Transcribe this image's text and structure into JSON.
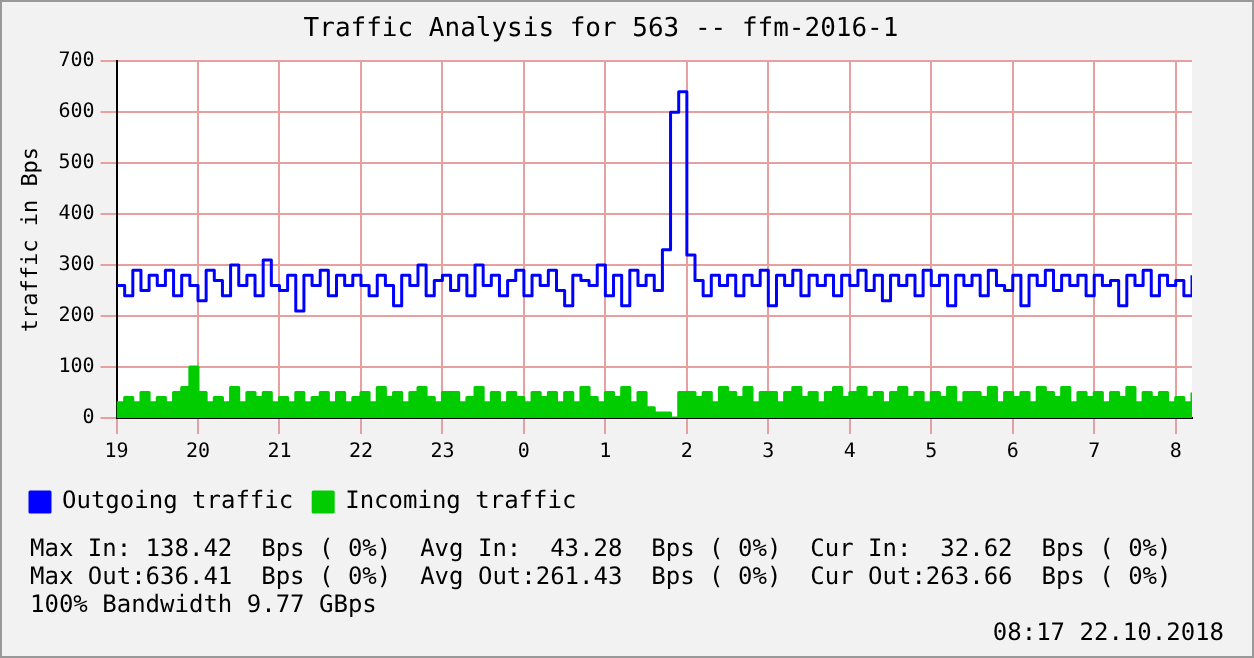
{
  "chart_data": {
    "type": "line",
    "title": "Traffic Analysis for 563 -- ffm-2016-1",
    "ylabel": "traffic in Bps",
    "x": [
      "2018-10-21T19:00",
      "2018-10-21T19:06",
      "2018-10-21T19:12",
      "2018-10-21T19:18",
      "2018-10-21T19:24",
      "2018-10-21T19:30",
      "2018-10-21T19:36",
      "2018-10-21T19:42",
      "2018-10-21T19:48",
      "2018-10-21T19:54",
      "2018-10-21T20:00",
      "2018-10-21T20:06",
      "2018-10-21T20:12",
      "2018-10-21T20:18",
      "2018-10-21T20:24",
      "2018-10-21T20:30",
      "2018-10-21T20:36",
      "2018-10-21T20:42",
      "2018-10-21T20:48",
      "2018-10-21T20:54",
      "2018-10-21T21:00",
      "2018-10-21T21:06",
      "2018-10-21T21:12",
      "2018-10-21T21:18",
      "2018-10-21T21:24",
      "2018-10-21T21:30",
      "2018-10-21T21:36",
      "2018-10-21T21:42",
      "2018-10-21T21:48",
      "2018-10-21T21:54",
      "2018-10-21T22:00",
      "2018-10-21T22:06",
      "2018-10-21T22:12",
      "2018-10-21T22:18",
      "2018-10-21T22:24",
      "2018-10-21T22:30",
      "2018-10-21T22:36",
      "2018-10-21T22:42",
      "2018-10-21T22:48",
      "2018-10-21T22:54",
      "2018-10-21T23:00",
      "2018-10-21T23:06",
      "2018-10-21T23:12",
      "2018-10-21T23:18",
      "2018-10-21T23:24",
      "2018-10-21T23:30",
      "2018-10-21T23:36",
      "2018-10-21T23:42",
      "2018-10-21T23:48",
      "2018-10-21T23:54",
      "2018-10-22T00:00",
      "2018-10-22T00:06",
      "2018-10-22T00:12",
      "2018-10-22T00:18",
      "2018-10-22T00:24",
      "2018-10-22T00:30",
      "2018-10-22T00:36",
      "2018-10-22T00:42",
      "2018-10-22T00:48",
      "2018-10-22T00:54",
      "2018-10-22T01:00",
      "2018-10-22T01:06",
      "2018-10-22T01:12",
      "2018-10-22T01:18",
      "2018-10-22T01:24",
      "2018-10-22T01:30",
      "2018-10-22T01:36",
      "2018-10-22T01:42",
      "2018-10-22T01:48",
      "2018-10-22T01:54",
      "2018-10-22T02:00",
      "2018-10-22T02:06",
      "2018-10-22T02:12",
      "2018-10-22T02:18",
      "2018-10-22T02:24",
      "2018-10-22T02:30",
      "2018-10-22T02:36",
      "2018-10-22T02:42",
      "2018-10-22T02:48",
      "2018-10-22T02:54",
      "2018-10-22T03:00",
      "2018-10-22T03:06",
      "2018-10-22T03:12",
      "2018-10-22T03:18",
      "2018-10-22T03:24",
      "2018-10-22T03:30",
      "2018-10-22T03:36",
      "2018-10-22T03:42",
      "2018-10-22T03:48",
      "2018-10-22T03:54",
      "2018-10-22T04:00",
      "2018-10-22T04:06",
      "2018-10-22T04:12",
      "2018-10-22T04:18",
      "2018-10-22T04:24",
      "2018-10-22T04:30",
      "2018-10-22T04:36",
      "2018-10-22T04:42",
      "2018-10-22T04:48",
      "2018-10-22T04:54",
      "2018-10-22T05:00",
      "2018-10-22T05:06",
      "2018-10-22T05:12",
      "2018-10-22T05:18",
      "2018-10-22T05:24",
      "2018-10-22T05:30",
      "2018-10-22T05:36",
      "2018-10-22T05:42",
      "2018-10-22T05:48",
      "2018-10-22T05:54",
      "2018-10-22T06:00",
      "2018-10-22T06:06",
      "2018-10-22T06:12",
      "2018-10-22T06:18",
      "2018-10-22T06:24",
      "2018-10-22T06:30",
      "2018-10-22T06:36",
      "2018-10-22T06:42",
      "2018-10-22T06:48",
      "2018-10-22T06:54",
      "2018-10-22T07:00",
      "2018-10-22T07:06",
      "2018-10-22T07:12",
      "2018-10-22T07:18",
      "2018-10-22T07:24",
      "2018-10-22T07:30",
      "2018-10-22T07:36",
      "2018-10-22T07:42",
      "2018-10-22T07:48",
      "2018-10-22T07:54",
      "2018-10-22T08:00",
      "2018-10-22T08:06",
      "2018-10-22T08:12"
    ],
    "series": [
      {
        "name": "Incoming traffic",
        "type": "area",
        "color": "#00cc00",
        "values": [
          30,
          40,
          30,
          50,
          30,
          40,
          30,
          50,
          60,
          100,
          50,
          30,
          40,
          30,
          60,
          30,
          50,
          40,
          50,
          30,
          40,
          30,
          50,
          30,
          40,
          50,
          30,
          50,
          30,
          40,
          50,
          30,
          60,
          40,
          50,
          30,
          50,
          60,
          40,
          30,
          50,
          50,
          30,
          40,
          60,
          30,
          50,
          30,
          50,
          40,
          30,
          50,
          40,
          50,
          30,
          50,
          30,
          60,
          40,
          30,
          50,
          40,
          60,
          30,
          50,
          20,
          10,
          10,
          0,
          50,
          50,
          40,
          50,
          30,
          60,
          50,
          40,
          60,
          30,
          50,
          50,
          30,
          50,
          60,
          40,
          50,
          30,
          50,
          60,
          40,
          50,
          60,
          40,
          50,
          30,
          50,
          60,
          40,
          50,
          30,
          50,
          40,
          60,
          30,
          50,
          50,
          40,
          60,
          30,
          50,
          40,
          50,
          30,
          60,
          50,
          40,
          60,
          30,
          50,
          40,
          50,
          30,
          50,
          40,
          60,
          30,
          50,
          40,
          50,
          30,
          40,
          30,
          50
        ]
      },
      {
        "name": "Outgoing traffic",
        "type": "step",
        "color": "#0000ff",
        "values": [
          260,
          240,
          290,
          250,
          280,
          260,
          290,
          240,
          280,
          260,
          230,
          290,
          270,
          240,
          300,
          260,
          280,
          240,
          310,
          260,
          250,
          280,
          210,
          280,
          260,
          290,
          240,
          280,
          260,
          280,
          260,
          240,
          280,
          260,
          220,
          280,
          260,
          300,
          240,
          270,
          280,
          250,
          280,
          240,
          300,
          260,
          280,
          240,
          270,
          290,
          240,
          280,
          260,
          290,
          250,
          220,
          280,
          270,
          260,
          300,
          240,
          280,
          220,
          290,
          260,
          280,
          250,
          330,
          600,
          640,
          320,
          270,
          240,
          280,
          260,
          280,
          240,
          280,
          260,
          290,
          220,
          280,
          260,
          290,
          240,
          280,
          260,
          280,
          240,
          280,
          260,
          290,
          250,
          280,
          230,
          280,
          260,
          280,
          240,
          290,
          260,
          280,
          220,
          280,
          260,
          280,
          240,
          290,
          260,
          250,
          280,
          220,
          280,
          260,
          290,
          250,
          280,
          260,
          280,
          240,
          280,
          260,
          270,
          220,
          280,
          260,
          290,
          240,
          280,
          260,
          270,
          240,
          280
        ]
      }
    ],
    "xlim": [
      "2018-10-21T19:00",
      "2018-10-22T08:12"
    ],
    "xticks": [
      {
        "value": "2018-10-21T19:00",
        "label": "19"
      },
      {
        "value": "2018-10-21T20:00",
        "label": "20"
      },
      {
        "value": "2018-10-21T21:00",
        "label": "21"
      },
      {
        "value": "2018-10-21T22:00",
        "label": "22"
      },
      {
        "value": "2018-10-21T23:00",
        "label": "23"
      },
      {
        "value": "2018-10-22T00:00",
        "label": "0"
      },
      {
        "value": "2018-10-22T01:00",
        "label": "1"
      },
      {
        "value": "2018-10-22T02:00",
        "label": "2"
      },
      {
        "value": "2018-10-22T03:00",
        "label": "3"
      },
      {
        "value": "2018-10-22T04:00",
        "label": "4"
      },
      {
        "value": "2018-10-22T05:00",
        "label": "5"
      },
      {
        "value": "2018-10-22T06:00",
        "label": "6"
      },
      {
        "value": "2018-10-22T07:00",
        "label": "7"
      },
      {
        "value": "2018-10-22T08:00",
        "label": "8"
      }
    ],
    "ylim": [
      0,
      700
    ],
    "yticks": [
      0,
      100,
      200,
      300,
      400,
      500,
      600,
      700
    ],
    "grid": true,
    "legend": "bottom left",
    "annotations": [
      "Max In: 138.42  Bps ( 0%)  Avg In:  43.28  Bps ( 0%)  Cur In:  32.62  Bps ( 0%)",
      "Max Out:636.41  Bps ( 0%)  Avg Out:261.43  Bps ( 0%)  Cur Out:263.66  Bps ( 0%)",
      "100% Bandwidth 9.77 GBps",
      "08:17 22.10.2018"
    ]
  }
}
